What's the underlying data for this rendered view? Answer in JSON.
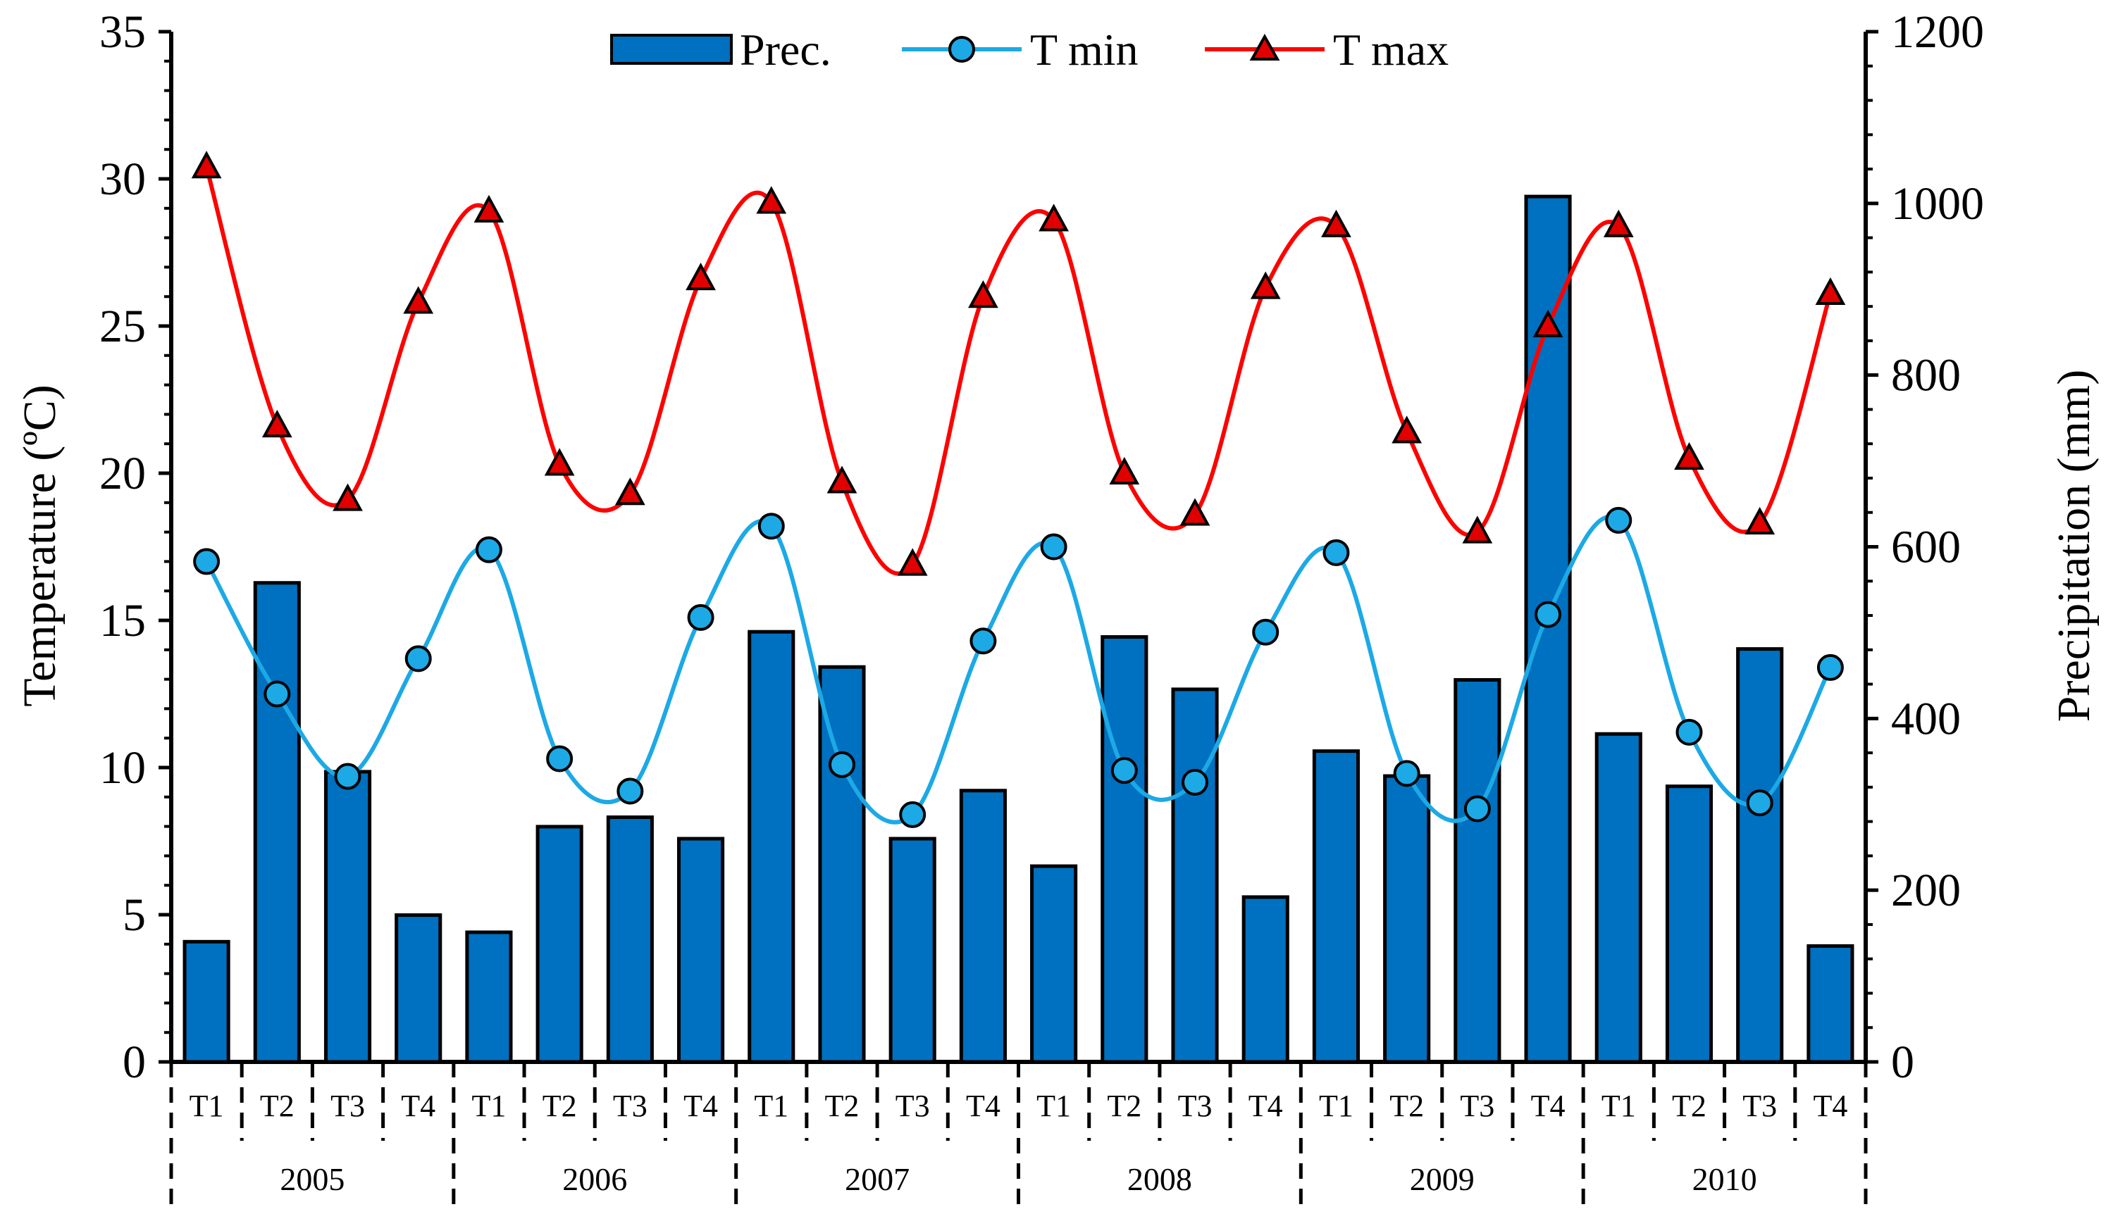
{
  "chart_data": {
    "type": "bar+line",
    "title": "",
    "ylabel_left": "Temperature (ºC)",
    "ylabel_right": "Precipitation (mm)",
    "ylim_left": [
      0,
      35
    ],
    "yticks_left": [
      0,
      5,
      10,
      15,
      20,
      25,
      30,
      35
    ],
    "ylim_right": [
      0,
      1200
    ],
    "yticks_right": [
      0,
      200,
      400,
      600,
      800,
      1000,
      1200
    ],
    "legend_position": "top-center",
    "periods": [
      "T1",
      "T2",
      "T3",
      "T4",
      "T1",
      "T2",
      "T3",
      "T4",
      "T1",
      "T2",
      "T3",
      "T4",
      "T1",
      "T2",
      "T3",
      "T4",
      "T1",
      "T2",
      "T3",
      "T4",
      "T1",
      "T2",
      "T3",
      "T4"
    ],
    "years": [
      "2005",
      "2006",
      "2007",
      "2008",
      "2009",
      "2010"
    ],
    "series": [
      {
        "name": "Prec.",
        "kind": "bar",
        "axis": "right",
        "color": "#0070C0",
        "values": [
          140,
          558,
          338,
          171,
          151,
          274,
          285,
          260,
          501,
          460,
          260,
          316,
          228,
          495,
          434,
          192,
          362,
          333,
          445,
          1008,
          382,
          321,
          481,
          135
        ]
      },
      {
        "name": "T min",
        "kind": "line",
        "axis": "left",
        "color": "#1CA9E6",
        "marker": "circle",
        "values": [
          17.0,
          12.5,
          9.7,
          13.7,
          17.4,
          10.3,
          9.2,
          15.1,
          18.2,
          10.1,
          8.4,
          14.3,
          17.5,
          9.9,
          9.5,
          14.6,
          17.3,
          9.8,
          8.6,
          15.2,
          18.4,
          11.2,
          8.8,
          13.4
        ]
      },
      {
        "name": "T max",
        "kind": "line",
        "axis": "left",
        "color": "#FF0000",
        "marker": "triangle",
        "values": [
          30.4,
          21.6,
          19.1,
          25.8,
          28.9,
          20.3,
          19.3,
          26.6,
          29.2,
          19.7,
          16.9,
          26.0,
          28.6,
          20.0,
          18.6,
          26.3,
          28.4,
          21.4,
          18.0,
          25.0,
          28.4,
          20.5,
          18.3,
          26.1
        ]
      }
    ]
  }
}
